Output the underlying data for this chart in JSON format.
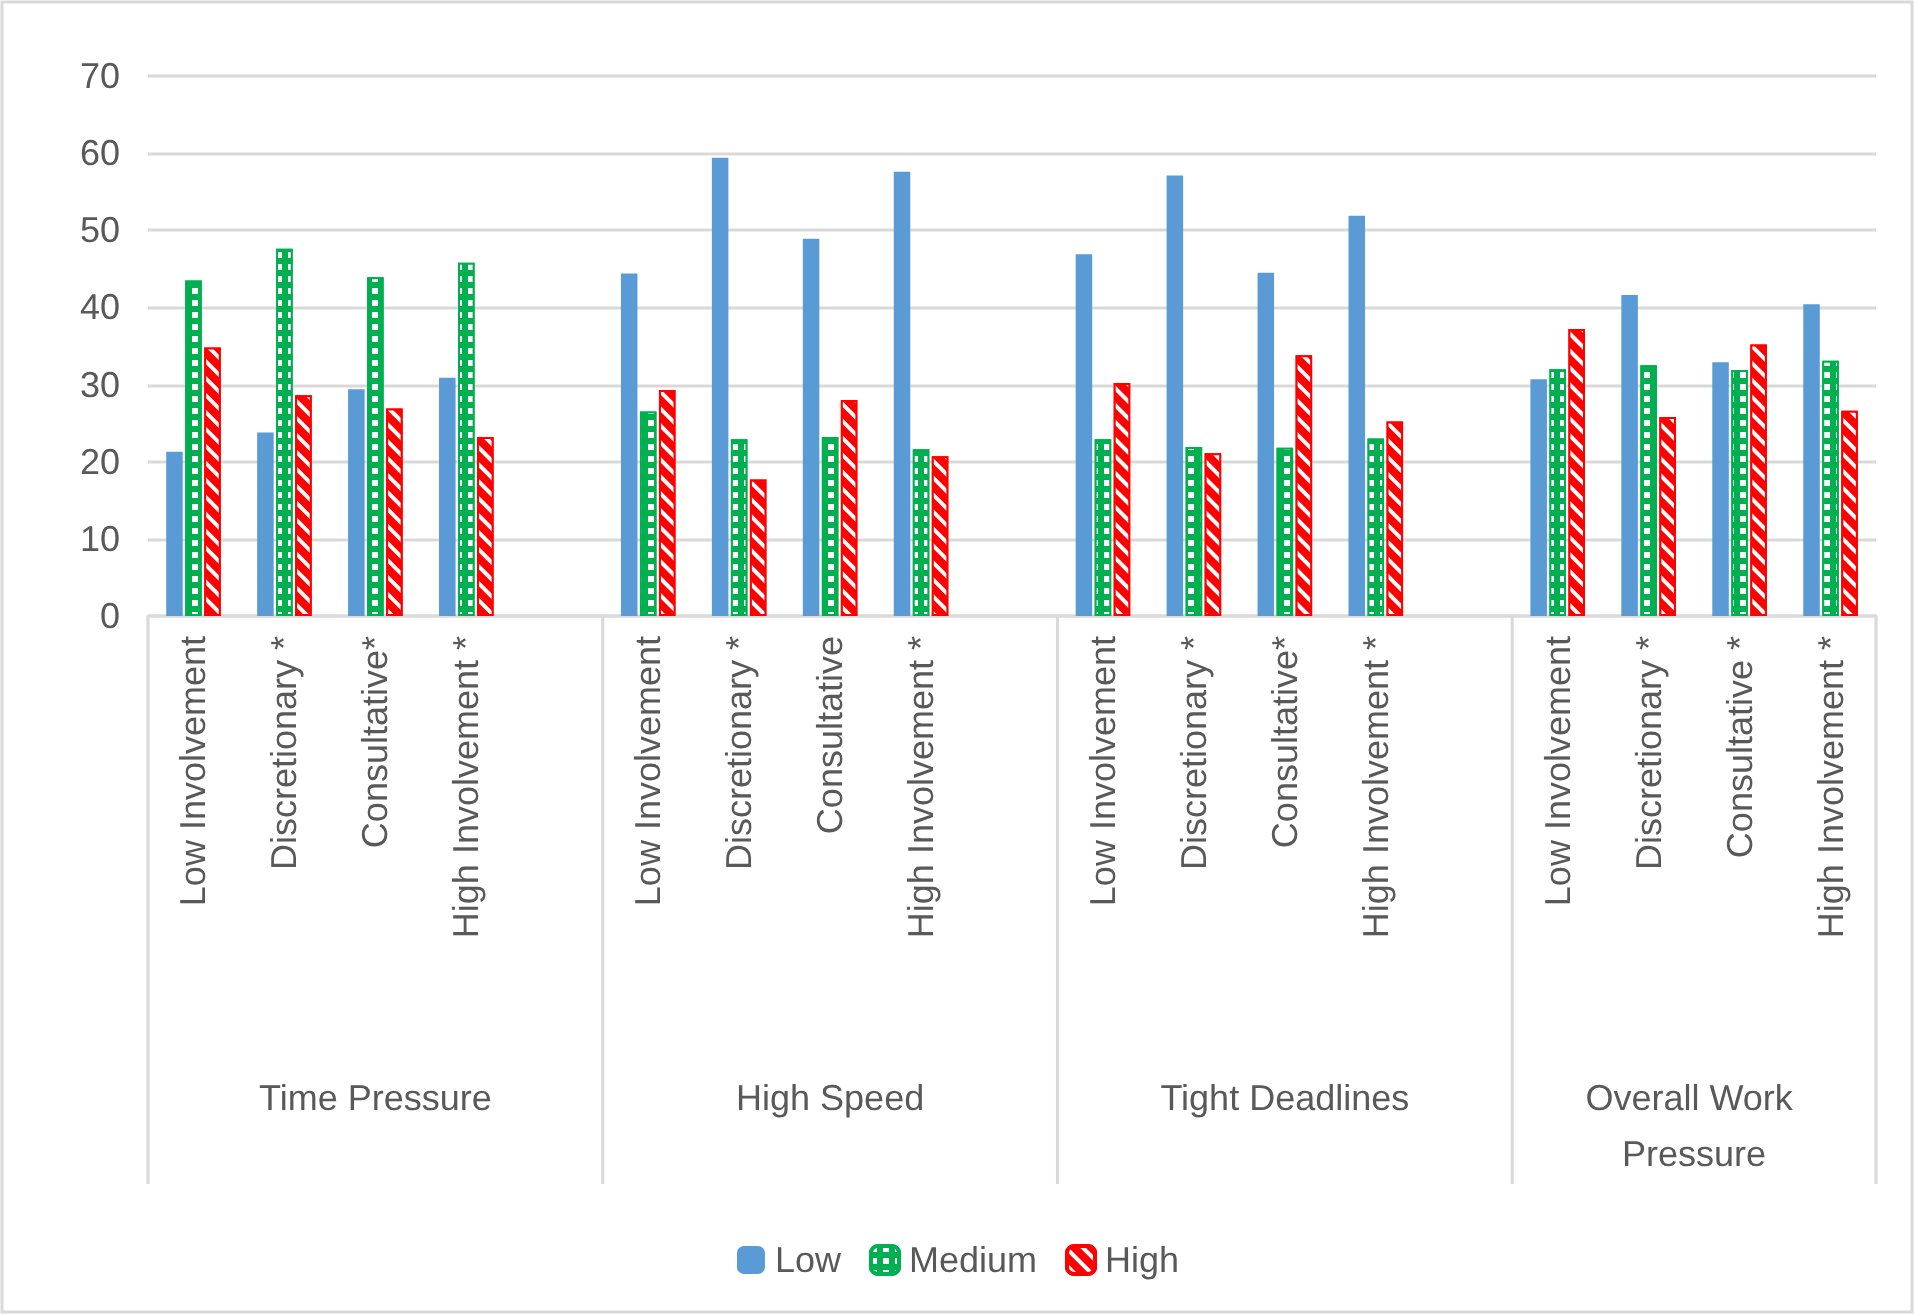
{
  "chart_data": {
    "type": "bar",
    "categories": [
      "Low Involvement",
      "Discretionary *",
      "Consultative*",
      "High Involvement *",
      null,
      "Low Involvement",
      "Discretionary *",
      "Consultative",
      "High Involvement *",
      null,
      "Low Involvement",
      "Discretionary *",
      "Consultative*",
      "High Involvement *",
      null,
      "Low Involvement",
      "Discretionary *",
      "Consultative *",
      "High Involvement *"
    ],
    "series": [
      {
        "name": "Low",
        "color": "#5b9bd5",
        "values": [
          21.3,
          23.8,
          29.4,
          30.9,
          null,
          44.4,
          59.4,
          48.9,
          57.6,
          null,
          46.9,
          57.1,
          44.5,
          51.9,
          null,
          30.7,
          41.6,
          32.9,
          40.4
        ]
      },
      {
        "name": "Medium",
        "color": "#00b050",
        "values": [
          43.5,
          47.6,
          43.9,
          45.8,
          null,
          26.5,
          22.9,
          23.2,
          21.6,
          null,
          22.9,
          21.9,
          21.8,
          23.0,
          null,
          32.0,
          32.5,
          31.9,
          33.1
        ]
      },
      {
        "name": "High",
        "color": "#ff0000",
        "values": [
          34.8,
          28.6,
          26.9,
          23.2,
          null,
          29.3,
          17.7,
          28.0,
          20.7,
          null,
          30.2,
          21.1,
          33.8,
          25.2,
          null,
          37.2,
          25.8,
          35.2,
          26.6
        ]
      }
    ],
    "annotations": [
      "Time Pressure",
      "High Speed",
      "Tight Deadlines",
      "Overall Work Pressure"
    ],
    "ylim": [
      0,
      70
    ],
    "yticks": [
      0,
      10,
      20,
      30,
      40,
      50,
      60,
      70
    ],
    "grid": "y",
    "legend": "bottom"
  }
}
